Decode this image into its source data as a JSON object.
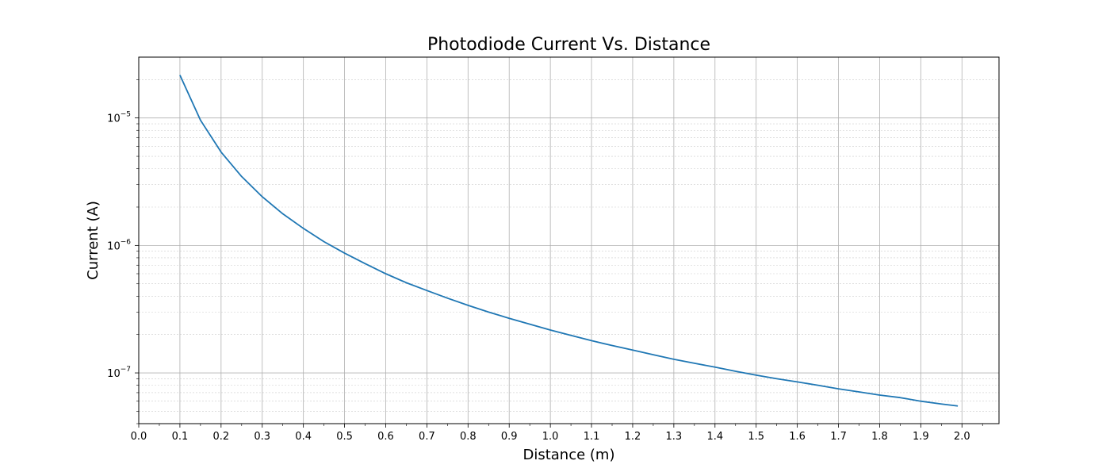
{
  "chart_data": {
    "type": "line",
    "title": "Photodiode Current Vs. Distance",
    "xlabel": "Distance (m)",
    "ylabel": "Current (A)",
    "y_scale": "log",
    "xlim": [
      0.0,
      2.09
    ],
    "ylim": [
      4e-08,
      3e-05
    ],
    "x_ticks": [
      "0.0",
      "0.1",
      "0.2",
      "0.3",
      "0.4",
      "0.5",
      "0.6",
      "0.7",
      "0.8",
      "0.9",
      "1.0",
      "1.1",
      "1.2",
      "1.3",
      "1.4",
      "1.5",
      "1.6",
      "1.7",
      "1.8",
      "1.9",
      "2.0"
    ],
    "y_ticks": [
      {
        "value": 1e-07,
        "base": "10",
        "exp": "−7"
      },
      {
        "value": 1e-06,
        "base": "10",
        "exp": "−6"
      },
      {
        "value": 1e-05,
        "base": "10",
        "exp": "−5"
      }
    ],
    "grid": "major and minor",
    "series": [
      {
        "color": "#1f77b4",
        "x": [
          0.1,
          0.15,
          0.2,
          0.25,
          0.3,
          0.35,
          0.4,
          0.45,
          0.5,
          0.55,
          0.6,
          0.65,
          0.7,
          0.75,
          0.8,
          0.85,
          0.9,
          0.95,
          1.0,
          1.05,
          1.1,
          1.15,
          1.2,
          1.25,
          1.3,
          1.35,
          1.4,
          1.45,
          1.5,
          1.55,
          1.6,
          1.65,
          1.7,
          1.75,
          1.8,
          1.85,
          1.9,
          1.95,
          1.99
        ],
        "y": [
          2.17e-05,
          9.6e-06,
          5.4e-06,
          3.47e-06,
          2.41e-06,
          1.77e-06,
          1.36e-06,
          1.07e-06,
          8.7e-07,
          7.2e-07,
          6e-07,
          5.1e-07,
          4.43e-07,
          3.86e-07,
          3.39e-07,
          3e-07,
          2.68e-07,
          2.41e-07,
          2.17e-07,
          1.97e-07,
          1.79e-07,
          1.64e-07,
          1.51e-07,
          1.39e-07,
          1.28e-07,
          1.19e-07,
          1.11e-07,
          1.03e-07,
          9.6e-08,
          9e-08,
          8.5e-08,
          8e-08,
          7.5e-08,
          7.1e-08,
          6.7e-08,
          6.4e-08,
          6e-08,
          5.7e-08,
          5.5e-08
        ]
      }
    ]
  }
}
